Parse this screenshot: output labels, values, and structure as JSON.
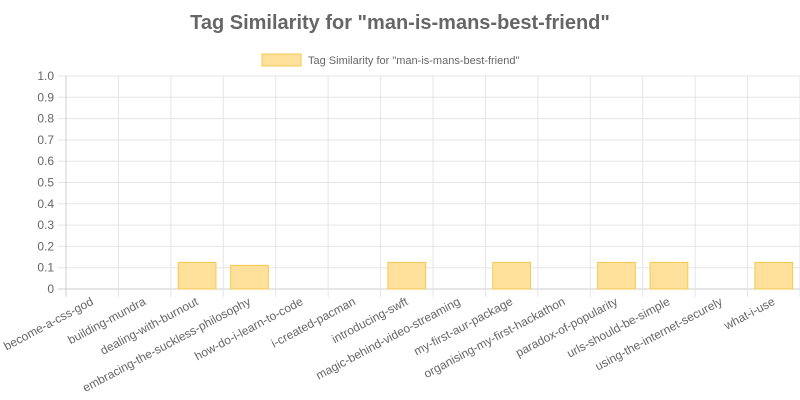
{
  "chart_data": {
    "type": "bar",
    "title": "Tag Similarity for \"man-is-mans-best-friend\"",
    "legend_position": "top",
    "grid": true,
    "ylim": [
      0,
      1.0
    ],
    "yticks": [
      "0",
      "0.1",
      "0.2",
      "0.3",
      "0.4",
      "0.5",
      "0.6",
      "0.7",
      "0.8",
      "0.9",
      "1.0"
    ],
    "categories": [
      "become-a-css-god",
      "building-mundra",
      "dealing-with-burnout",
      "embracing-the-suckless-philosophy",
      "how-do-i-learn-to-code",
      "i-created-pacman",
      "introducing-swft",
      "magic-behind-video-streaming",
      "my-first-aur-package",
      "organising-my-first-hackathon",
      "paradox-of-popularity",
      "urls-should-be-simple",
      "using-the-internet-securely",
      "what-i-use"
    ],
    "series": [
      {
        "name": "Tag Similarity for \"man-is-mans-best-friend\"",
        "color": "#ffe19c",
        "border_color": "#f5c94e",
        "values": [
          0,
          0,
          0.125,
          0.111,
          0,
          0,
          0.125,
          0,
          0.125,
          0,
          0.125,
          0.125,
          0,
          0.125
        ]
      }
    ]
  }
}
